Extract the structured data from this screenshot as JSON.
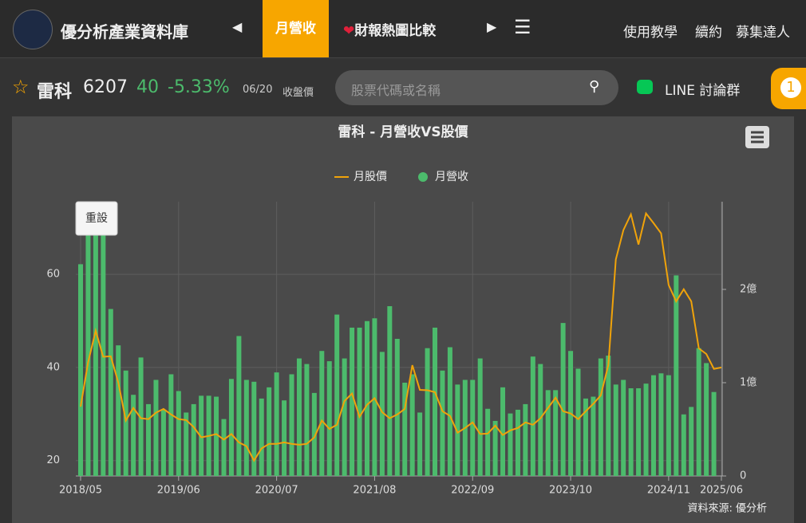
{
  "header": {
    "site_name": "優分析產業資料庫",
    "tabs": [
      "月營收",
      "財報熱圖比較"
    ],
    "links": [
      "使用教學",
      "續約",
      "募集達人"
    ]
  },
  "stock": {
    "name": "雷科",
    "code": "6207",
    "price": "40",
    "change": "-5.33%",
    "date": "06/20",
    "price_label": "收盤價"
  },
  "search": {
    "placeholder": "股票代碼或名稱"
  },
  "line_group": "LINE 討論群",
  "badge": "1",
  "chart_data": {
    "type": "combo",
    "title": "雷科 - 月營收VS股價",
    "reset_button": "重設",
    "source": "資料來源: 優分析",
    "categories": [
      "2018/05",
      null,
      null,
      null,
      null,
      null,
      null,
      null,
      null,
      null,
      null,
      null,
      null,
      "2019/06",
      null,
      null,
      null,
      null,
      null,
      null,
      null,
      null,
      null,
      null,
      null,
      null,
      "2020/07",
      null,
      null,
      null,
      null,
      null,
      null,
      null,
      null,
      null,
      null,
      null,
      null,
      "2021/08",
      null,
      null,
      null,
      null,
      null,
      null,
      null,
      null,
      null,
      null,
      null,
      null,
      "2022/09",
      null,
      null,
      null,
      null,
      null,
      null,
      null,
      null,
      null,
      null,
      null,
      null,
      "2023/10",
      null,
      null,
      null,
      null,
      null,
      null,
      null,
      null,
      null,
      null,
      null,
      null,
      "2024/11",
      null,
      null,
      null,
      null,
      null,
      null,
      "2025/06"
    ],
    "series": [
      {
        "name": "月股價",
        "type": "line",
        "axis": "y",
        "color": "#f0a30a",
        "values": [
          31.6,
          41.1,
          47.9,
          42.3,
          42.4,
          36.8,
          28.6,
          31.3,
          29.1,
          28.9,
          30.3,
          31.1,
          29.9,
          28.9,
          28.7,
          27.2,
          25.0,
          25.3,
          25.7,
          24.5,
          25.7,
          23.9,
          23.1,
          20.0,
          22.6,
          23.6,
          23.6,
          23.9,
          23.6,
          23.4,
          23.6,
          25.0,
          28.6,
          26.8,
          27.7,
          32.8,
          34.4,
          29.4,
          32.0,
          33.4,
          30.4,
          29.1,
          29.9,
          31.1,
          40.5,
          35.2,
          35.1,
          34.7,
          30.6,
          29.6,
          26.0,
          27.0,
          28.2,
          25.7,
          25.8,
          27.5,
          25.5,
          26.5,
          27.0,
          28.2,
          27.7,
          29.1,
          31.3,
          33.5,
          30.6,
          30.1,
          28.9,
          30.6,
          32.2,
          34.0,
          40.5,
          63.2,
          69.5,
          72.9,
          66.4,
          73.1,
          71.0,
          68.8,
          57.7,
          54.2,
          56.8,
          54.2,
          44.1,
          42.9,
          39.7,
          40.0
        ]
      },
      {
        "name": "月營收",
        "type": "bar",
        "axis": "y2",
        "color": "#4cbb6c",
        "values": [
          2.27,
          2.7,
          2.8,
          2.7,
          1.79,
          1.4,
          1.13,
          0.87,
          1.27,
          0.77,
          1.03,
          0.71,
          1.09,
          0.91,
          0.68,
          0.77,
          0.86,
          0.86,
          0.85,
          0.61,
          1.04,
          1.5,
          1.03,
          1.01,
          0.83,
          0.95,
          1.11,
          0.81,
          1.09,
          1.26,
          1.2,
          0.89,
          1.34,
          1.23,
          1.73,
          1.26,
          1.59,
          1.59,
          1.66,
          1.69,
          1.33,
          1.82,
          1.47,
          1.0,
          1.09,
          0.68,
          1.37,
          1.59,
          1.13,
          1.38,
          0.98,
          1.03,
          1.03,
          1.26,
          0.72,
          0.59,
          0.95,
          0.67,
          0.71,
          0.77,
          1.28,
          1.2,
          0.92,
          0.92,
          1.64,
          1.34,
          1.15,
          0.83,
          0.85,
          1.26,
          1.29,
          0.98,
          1.03,
          0.94,
          0.94,
          0.99,
          1.08,
          1.1,
          1.08,
          2.15,
          0.66,
          0.74,
          1.37,
          1.21,
          0.9,
          null
        ]
      }
    ],
    "ylim": [
      16.7,
      75.6
    ],
    "yticks": [
      20,
      40,
      60
    ],
    "y2lim": [
      0,
      2.94
    ],
    "y2ticks": [
      0,
      {
        "value": 1,
        "label": "1億"
      },
      {
        "value": 2,
        "label": "2億"
      }
    ],
    "grid": true
  }
}
